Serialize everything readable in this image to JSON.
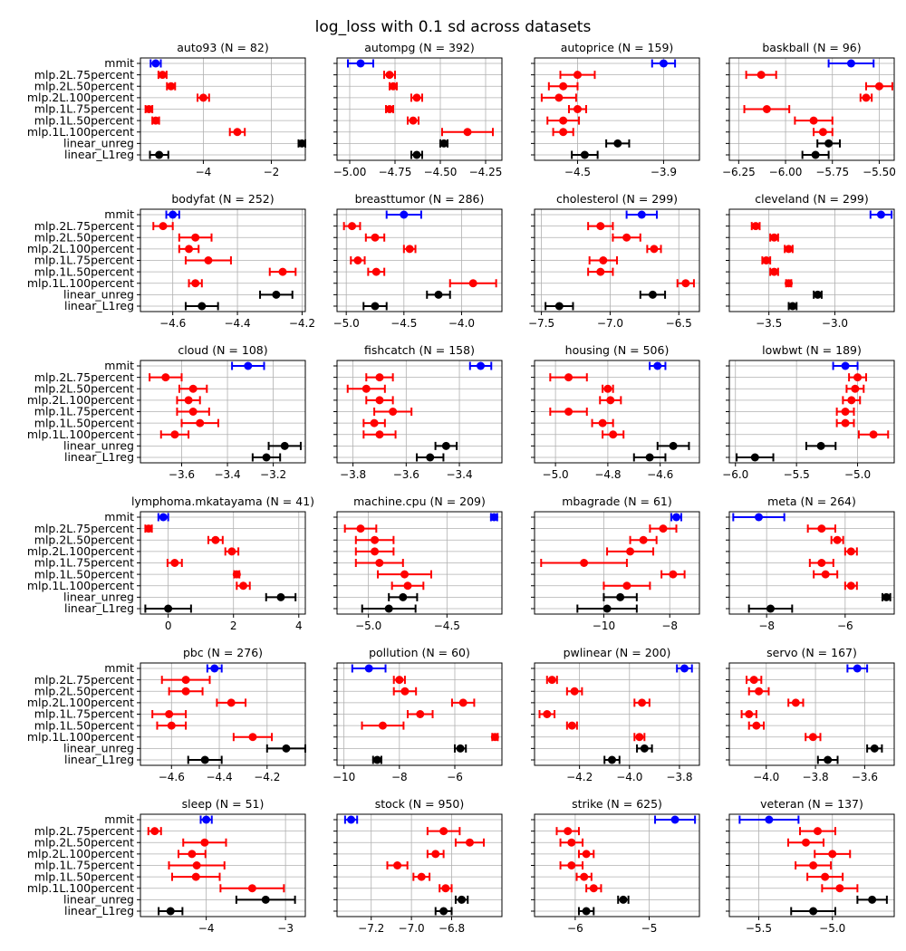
{
  "colors": {
    "mmit": "#0000ff",
    "mlp": "#ff0000",
    "linear": "#000000",
    "grid": "#b0b0b0"
  },
  "chart_data": {
    "type": "errorbar",
    "title": "log_loss with 0.1 sd across datasets",
    "models": [
      "mmit",
      "mlp.2L.75percent",
      "mlp.2L.50percent",
      "mlp.2L.100percent",
      "mlp.1L.75percent",
      "mlp.1L.50percent",
      "mlp.1L.100percent",
      "linear_unreg",
      "linear_L1reg"
    ],
    "model_colors": [
      "mmit",
      "mlp",
      "mlp",
      "mlp",
      "mlp",
      "mlp",
      "mlp",
      "linear",
      "linear"
    ],
    "grid": true,
    "panels": [
      {
        "title": "auto93 (N = 82)",
        "xlim": [
          -5.85,
          -1.0
        ],
        "xticks": [
          -4,
          -2
        ],
        "xtick_labels": [
          "−4",
          "−2"
        ],
        "means": [
          -5.4,
          -5.2,
          -4.95,
          -4.0,
          -5.6,
          -5.4,
          -3.0,
          -1.1,
          -5.3
        ],
        "errs": [
          0.15,
          0.12,
          0.12,
          0.17,
          0.1,
          0.1,
          0.22,
          0.1,
          0.27
        ]
      },
      {
        "title": "autompg (N = 392)",
        "xlim": [
          -5.07,
          -4.16
        ],
        "xticks": [
          -5.0,
          -4.75,
          -4.5,
          -4.25
        ],
        "xtick_labels": [
          "−5.00",
          "−4.75",
          "−4.50",
          "−4.25"
        ],
        "means": [
          -4.94,
          -4.78,
          -4.76,
          -4.63,
          -4.78,
          -4.65,
          -4.35,
          -4.48,
          -4.63
        ],
        "errs": [
          0.07,
          0.03,
          0.02,
          0.03,
          0.02,
          0.03,
          0.14,
          0.02,
          0.03
        ]
      },
      {
        "title": "autoprice (N = 159)",
        "xlim": [
          -4.8,
          -3.65
        ],
        "xticks": [
          -4.5,
          -3.9
        ],
        "xtick_labels": [
          "−4.5",
          "−3.9"
        ],
        "means": [
          -3.9,
          -4.5,
          -4.6,
          -4.63,
          -4.5,
          -4.6,
          -4.6,
          -4.22,
          -4.45
        ],
        "errs": [
          0.08,
          0.12,
          0.1,
          0.12,
          0.06,
          0.11,
          0.07,
          0.08,
          0.09
        ]
      },
      {
        "title": "baskball (N = 96)",
        "xlim": [
          -6.3,
          -5.42
        ],
        "xticks": [
          -6.25,
          -6.0,
          -5.75,
          -5.5
        ],
        "xtick_labels": [
          "−6.25",
          "−6.00",
          "−5.75",
          "−5.50"
        ],
        "means": [
          -5.65,
          -6.13,
          -5.5,
          -5.57,
          -6.1,
          -5.85,
          -5.8,
          -5.77,
          -5.84
        ],
        "errs": [
          0.12,
          0.08,
          0.07,
          0.03,
          0.12,
          0.1,
          0.05,
          0.06,
          0.07
        ]
      },
      {
        "title": "bodyfat (N = 252)",
        "xlim": [
          -4.7,
          -4.19
        ],
        "xticks": [
          -4.6,
          -4.4,
          -4.2
        ],
        "xtick_labels": [
          "−4.6",
          "−4.4",
          "−4.2"
        ],
        "means": [
          -4.6,
          -4.63,
          -4.53,
          -4.55,
          -4.49,
          -4.26,
          -4.53,
          -4.28,
          -4.51
        ],
        "errs": [
          0.02,
          0.03,
          0.05,
          0.03,
          0.07,
          0.04,
          0.02,
          0.05,
          0.05
        ]
      },
      {
        "title": "breasttumor (N = 286)",
        "xlim": [
          -5.08,
          -3.65
        ],
        "xticks": [
          -5.0,
          -4.5,
          -4.0
        ],
        "xtick_labels": [
          "−5.0",
          "−4.5",
          "−4.0"
        ],
        "means": [
          -4.5,
          -4.95,
          -4.75,
          -4.45,
          -4.9,
          -4.74,
          -3.9,
          -4.2,
          -4.75
        ],
        "errs": [
          0.15,
          0.07,
          0.08,
          0.05,
          0.06,
          0.07,
          0.2,
          0.1,
          0.1
        ]
      },
      {
        "title": "cholesterol (N = 299)",
        "xlim": [
          -7.55,
          -6.35
        ],
        "xticks": [
          -7.5,
          -7.0,
          -6.5
        ],
        "xtick_labels": [
          "−7.5",
          "−7.0",
          "−6.5"
        ],
        "means": [
          -6.77,
          -7.07,
          -6.88,
          -6.68,
          -7.05,
          -7.07,
          -6.45,
          -6.69,
          -7.37
        ],
        "errs": [
          0.11,
          0.09,
          0.1,
          0.05,
          0.1,
          0.09,
          0.06,
          0.09,
          0.1
        ]
      },
      {
        "title": "cleveland (N = 299)",
        "xlim": [
          -3.8,
          -2.55
        ],
        "xticks": [
          -3.5,
          -3.0
        ],
        "xtick_labels": [
          "−3.5",
          "−3.0"
        ],
        "means": [
          -2.65,
          -3.6,
          -3.46,
          -3.35,
          -3.52,
          -3.46,
          -3.35,
          -3.13,
          -3.32
        ],
        "errs": [
          0.08,
          0.03,
          0.03,
          0.03,
          0.03,
          0.03,
          0.02,
          0.03,
          0.03
        ]
      },
      {
        "title": "cloud (N = 108)",
        "xlim": [
          -3.78,
          -3.06
        ],
        "xticks": [
          -3.6,
          -3.4,
          -3.2
        ],
        "xtick_labels": [
          "−3.6",
          "−3.4",
          "−3.2"
        ],
        "means": [
          -3.31,
          -3.67,
          -3.55,
          -3.57,
          -3.55,
          -3.52,
          -3.63,
          -3.15,
          -3.23
        ],
        "errs": [
          0.07,
          0.07,
          0.06,
          0.05,
          0.07,
          0.08,
          0.06,
          0.07,
          0.06
        ]
      },
      {
        "title": "fishcatch (N = 158)",
        "xlim": [
          -3.86,
          -3.24
        ],
        "xticks": [
          -3.8,
          -3.6,
          -3.4
        ],
        "xtick_labels": [
          "−3.8",
          "−3.6",
          "−3.4"
        ],
        "means": [
          -3.32,
          -3.7,
          -3.75,
          -3.7,
          -3.65,
          -3.72,
          -3.7,
          -3.45,
          -3.51
        ],
        "errs": [
          0.04,
          0.05,
          0.07,
          0.05,
          0.07,
          0.04,
          0.06,
          0.04,
          0.05
        ]
      },
      {
        "title": "housing (N = 506)",
        "xlim": [
          -5.08,
          -4.45
        ],
        "xticks": [
          -5.0,
          -4.8,
          -4.6
        ],
        "xtick_labels": [
          "−5.0",
          "−4.8",
          "−4.6"
        ],
        "means": [
          -4.61,
          -4.95,
          -4.8,
          -4.79,
          -4.95,
          -4.82,
          -4.78,
          -4.55,
          -4.64
        ],
        "errs": [
          0.03,
          0.07,
          0.02,
          0.04,
          0.07,
          0.04,
          0.04,
          0.06,
          0.06
        ]
      },
      {
        "title": "lowbwt (N = 189)",
        "xlim": [
          -6.05,
          -4.7
        ],
        "xticks": [
          -6.0,
          -5.5,
          -5.0
        ],
        "xtick_labels": [
          "−6.0",
          "−5.5",
          "−5.0"
        ],
        "means": [
          -5.1,
          -5.0,
          -5.02,
          -5.05,
          -5.1,
          -5.1,
          -4.87,
          -5.3,
          -5.84
        ],
        "errs": [
          0.1,
          0.07,
          0.07,
          0.07,
          0.07,
          0.07,
          0.12,
          0.12,
          0.15
        ]
      },
      {
        "title": "lymphoma.mkatayama (N = 41)",
        "xlim": [
          -0.85,
          4.2
        ],
        "xticks": [
          0,
          2,
          4
        ],
        "xtick_labels": [
          "0",
          "2",
          "4"
        ],
        "means": [
          -0.15,
          -0.6,
          1.45,
          1.95,
          0.2,
          2.1,
          2.3,
          3.45,
          0.0
        ],
        "errs": [
          0.15,
          0.1,
          0.22,
          0.2,
          0.22,
          0.08,
          0.2,
          0.45,
          0.7
        ]
      },
      {
        "title": "machine.cpu (N = 209)",
        "xlim": [
          -5.2,
          -4.15
        ],
        "xticks": [
          -5.0,
          -4.5
        ],
        "xtick_labels": [
          "−5.0",
          "−4.5"
        ],
        "means": [
          -4.2,
          -5.05,
          -4.96,
          -4.96,
          -4.93,
          -4.77,
          -4.75,
          -4.78,
          -4.87
        ],
        "errs": [
          0.02,
          0.1,
          0.12,
          0.12,
          0.15,
          0.17,
          0.1,
          0.09,
          0.17
        ]
      },
      {
        "title": "mbagrade (N = 61)",
        "xlim": [
          -12.1,
          -7.1
        ],
        "xticks": [
          -10,
          -8
        ],
        "xtick_labels": [
          "−10",
          "−8"
        ],
        "means": [
          -7.8,
          -8.2,
          -8.8,
          -9.2,
          -10.6,
          -7.9,
          -9.3,
          -9.5,
          -9.9
        ],
        "errs": [
          0.15,
          0.4,
          0.4,
          0.7,
          1.3,
          0.35,
          0.7,
          0.5,
          0.9
        ]
      },
      {
        "title": "meta (N = 264)",
        "xlim": [
          -8.95,
          -4.75
        ],
        "xticks": [
          -8,
          -6
        ],
        "xtick_labels": [
          "−8",
          "−6"
        ],
        "means": [
          -8.2,
          -6.6,
          -6.2,
          -5.85,
          -6.6,
          -6.5,
          -5.85,
          -4.95,
          -7.9
        ],
        "errs": [
          0.65,
          0.35,
          0.15,
          0.15,
          0.3,
          0.3,
          0.15,
          0.1,
          0.55
        ]
      },
      {
        "title": "pbc (N = 276)",
        "xlim": [
          -4.73,
          -4.04
        ],
        "xticks": [
          -4.6,
          -4.4,
          -4.2
        ],
        "xtick_labels": [
          "−4.6",
          "−4.4",
          "−4.2"
        ],
        "means": [
          -4.42,
          -4.54,
          -4.54,
          -4.35,
          -4.61,
          -4.6,
          -4.26,
          -4.12,
          -4.46
        ],
        "errs": [
          0.03,
          0.1,
          0.07,
          0.06,
          0.07,
          0.06,
          0.08,
          0.08,
          0.07
        ]
      },
      {
        "title": "pollution (N = 60)",
        "xlim": [
          -10.25,
          -4.3
        ],
        "xticks": [
          -10,
          -8,
          -6
        ],
        "xtick_labels": [
          "−10",
          "−8",
          "−6"
        ],
        "means": [
          -9.1,
          -8.0,
          -7.8,
          -5.7,
          -7.25,
          -8.6,
          -4.55,
          -5.8,
          -8.8
        ],
        "errs": [
          0.6,
          0.2,
          0.4,
          0.4,
          0.45,
          0.75,
          0.1,
          0.2,
          0.15
        ]
      },
      {
        "title": "pwlinear (N = 200)",
        "xlim": [
          -4.38,
          -3.72
        ],
        "xticks": [
          -4.2,
          -4.0,
          -3.8
        ],
        "xtick_labels": [
          "−4.2",
          "−4.0",
          "−3.8"
        ],
        "means": [
          -3.78,
          -4.31,
          -4.22,
          -3.95,
          -4.33,
          -4.23,
          -3.96,
          -3.94,
          -4.07
        ],
        "errs": [
          0.03,
          0.02,
          0.03,
          0.03,
          0.03,
          0.02,
          0.02,
          0.03,
          0.03
        ]
      },
      {
        "title": "servo (N = 167)",
        "xlim": [
          -4.15,
          -3.48
        ],
        "xticks": [
          -4.0,
          -3.8,
          -3.6
        ],
        "xtick_labels": [
          "−4.0",
          "−3.8",
          "−3.6"
        ],
        "means": [
          -3.63,
          -4.05,
          -4.03,
          -3.88,
          -4.07,
          -4.04,
          -3.81,
          -3.56,
          -3.75
        ],
        "errs": [
          0.04,
          0.03,
          0.04,
          0.03,
          0.03,
          0.03,
          0.03,
          0.03,
          0.04
        ]
      },
      {
        "title": "sleep (N = 51)",
        "xlim": [
          -4.83,
          -2.75
        ],
        "xticks": [
          -4,
          -3
        ],
        "xtick_labels": [
          "−4",
          "−3"
        ],
        "means": [
          -4.0,
          -4.65,
          -4.02,
          -4.18,
          -4.12,
          -4.13,
          -3.42,
          -3.25,
          -4.45
        ],
        "errs": [
          0.07,
          0.08,
          0.27,
          0.17,
          0.35,
          0.3,
          0.4,
          0.37,
          0.15
        ]
      },
      {
        "title": "stock (N = 950)",
        "xlim": [
          -7.37,
          -6.55
        ],
        "xticks": [
          -7.2,
          -7.0,
          -6.8
        ],
        "xtick_labels": [
          "−7.2",
          "−7.0",
          "−6.8"
        ],
        "means": [
          -7.3,
          -6.84,
          -6.71,
          -6.88,
          -7.07,
          -6.95,
          -6.83,
          -6.75,
          -6.84
        ],
        "errs": [
          0.03,
          0.08,
          0.07,
          0.04,
          0.05,
          0.04,
          0.03,
          0.03,
          0.04
        ]
      },
      {
        "title": "strike (N = 625)",
        "xlim": [
          -6.55,
          -4.32
        ],
        "xticks": [
          -6,
          -5
        ],
        "xtick_labels": [
          "−6",
          "−5"
        ],
        "means": [
          -4.65,
          -6.1,
          -6.05,
          -5.85,
          -6.05,
          -5.88,
          -5.75,
          -5.35,
          -5.85
        ],
        "errs": [
          0.27,
          0.15,
          0.15,
          0.1,
          0.15,
          0.1,
          0.1,
          0.07,
          0.1
        ]
      },
      {
        "title": "veteran (N = 137)",
        "xlim": [
          -5.7,
          -4.58
        ],
        "xticks": [
          -5.5,
          -5.0
        ],
        "xtick_labels": [
          "−5.5",
          "−5.0"
        ],
        "means": [
          -5.43,
          -5.1,
          -5.18,
          -5.0,
          -5.13,
          -5.05,
          -4.95,
          -4.73,
          -5.13
        ],
        "errs": [
          0.2,
          0.12,
          0.12,
          0.12,
          0.12,
          0.12,
          0.12,
          0.1,
          0.15
        ]
      }
    ]
  }
}
